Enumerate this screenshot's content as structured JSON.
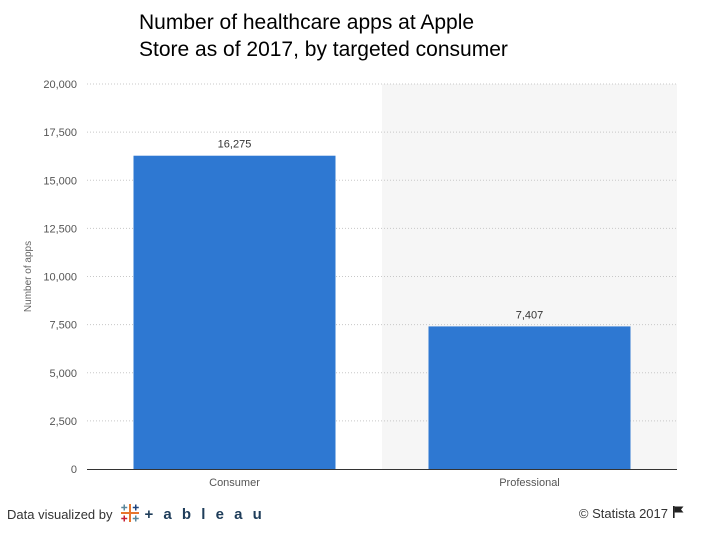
{
  "chart_data": {
    "type": "bar",
    "title": "Number of healthcare apps at Apple Store as of 2017, by targeted consumer",
    "categories": [
      "Consumer",
      "Professional"
    ],
    "values": [
      16275,
      7407
    ],
    "value_labels": [
      "16,275",
      "7,407"
    ],
    "xlabel": "",
    "ylabel": "Number of apps",
    "ylim": [
      0,
      20000
    ],
    "yticks": [
      0,
      2500,
      5000,
      7500,
      10000,
      12500,
      15000,
      17500,
      20000
    ],
    "ytick_labels": [
      "0",
      "2,500",
      "5,000",
      "7,500",
      "10,000",
      "12,500",
      "15,000",
      "17,500",
      "20,000"
    ],
    "grid": true,
    "legend": "none",
    "bar_color": "#2e78d2",
    "highlight_band_color": "#f6f6f6"
  },
  "footer": {
    "visualized_by": "Data visualized by",
    "tableau_word": "+ a b l e a u",
    "tableau_logo_icon": "tableau-cross-icon",
    "copyright": "© Statista 2017",
    "flag_icon": "flag-icon"
  }
}
